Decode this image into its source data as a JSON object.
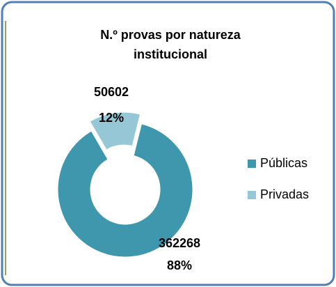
{
  "chart_data": {
    "type": "donut",
    "title": "N.º provas por natureza institucional",
    "categories": [
      "Públicas",
      "Privadas"
    ],
    "values": [
      362268,
      50602
    ],
    "percent_labels": [
      "88%",
      "12%"
    ],
    "colors": [
      "#3e97ad",
      "#95c7d7"
    ],
    "legend": "right"
  }
}
